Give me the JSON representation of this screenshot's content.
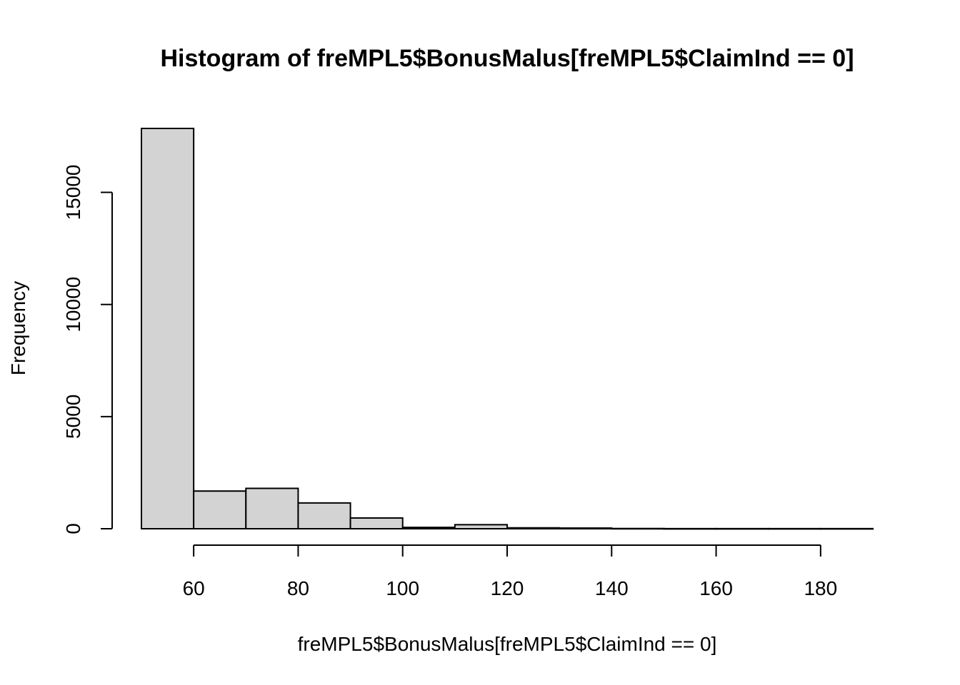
{
  "chart_data": {
    "type": "bar",
    "title": "Histogram of freMPL5$BonusMalus[freMPL5$ClaimInd == 0]",
    "xlabel": "freMPL5$BonusMalus[freMPL5$ClaimInd == 0]",
    "ylabel": "Frequency",
    "bin_edges": [
      50,
      60,
      70,
      80,
      90,
      100,
      110,
      120,
      130,
      140,
      150,
      160,
      170,
      180,
      190
    ],
    "values": [
      17850,
      1680,
      1800,
      1150,
      480,
      60,
      180,
      40,
      30,
      10,
      5,
      5,
      5,
      5
    ],
    "xlim": [
      50,
      190
    ],
    "ylim": [
      0,
      17850
    ],
    "x_ticks": [
      60,
      80,
      100,
      120,
      140,
      160,
      180
    ],
    "x_tick_labels": [
      "60",
      "80",
      "100",
      "120",
      "140",
      "160",
      "180"
    ],
    "y_ticks": [
      0,
      5000,
      10000,
      15000
    ],
    "y_tick_labels": [
      "0",
      "5000",
      "10000",
      "15000"
    ],
    "bar_color": "#d3d3d3",
    "grid": false,
    "legend": "none"
  }
}
